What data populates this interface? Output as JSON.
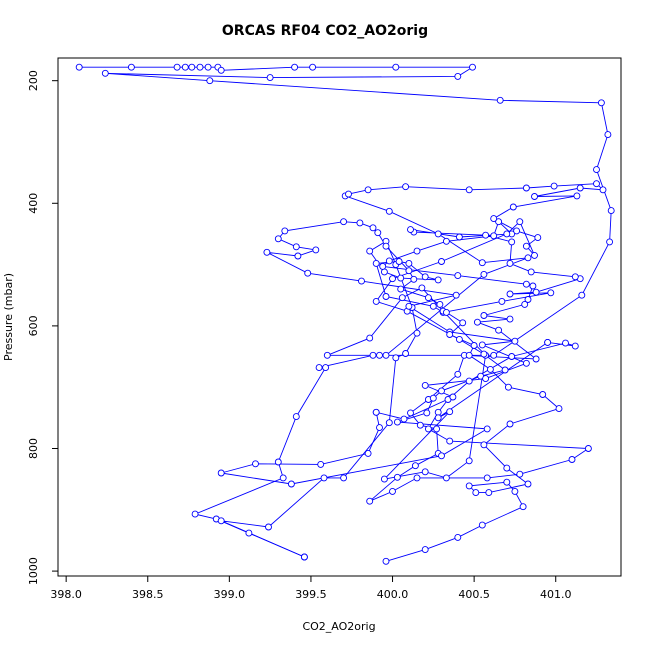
{
  "chart_data": {
    "type": "line",
    "title": "ORCAS RF04 CO2_AO2orig",
    "xlabel": "CO2_AO2orig",
    "ylabel": "Pressure (mbar)",
    "xlim": [
      397.95,
      401.4
    ],
    "ylim": [
      163,
      1008
    ],
    "y_reversed": true,
    "grid": false,
    "legend": "none",
    "marker": "open-circle",
    "color": "#0000ff",
    "x_ticks": [
      398.0,
      398.5,
      399.0,
      399.5,
      400.0,
      400.5,
      401.0
    ],
    "x_tick_labels": [
      "398.0",
      "398.5",
      "399.0",
      "399.5",
      "400.0",
      "400.5",
      "401.0"
    ],
    "y_ticks": [
      200,
      400,
      600,
      800,
      1000
    ],
    "y_tick_labels": [
      "200",
      "400",
      "600",
      "800",
      "1000"
    ],
    "series": [
      {
        "x": [
          398.08,
          398.4,
          398.68,
          398.73,
          398.77,
          398.82,
          398.87,
          398.93,
          398.95,
          399.4,
          399.51,
          400.02,
          400.49,
          400.4,
          399.25,
          398.24,
          398.88,
          400.66,
          401.28,
          401.32,
          401.25,
          401.34,
          401.33,
          401.16,
          400.62,
          399.92,
          399.88,
          399.55,
          399.59,
          399.41,
          399.3,
          399.33,
          398.79,
          398.92,
          399.12,
          399.46
        ],
        "y": [
          178,
          178,
          178,
          178,
          178,
          178,
          178,
          178,
          183,
          178,
          178,
          178,
          178,
          193,
          195,
          188,
          200,
          232,
          236,
          288,
          345,
          412,
          463,
          550,
          648,
          648,
          648,
          668,
          668,
          748,
          822,
          848,
          907,
          915,
          938,
          977
        ]
      },
      {
        "x": [
          399.46,
          398.95,
          399.24,
          399.58,
          399.7,
          399.98,
          400.02,
          400.08,
          400.15,
          400.12,
          400.02,
          399.96,
          399.86,
          399.95,
          400.05,
          400.28,
          400.2,
          400.1,
          400.04,
          399.9,
          399.96,
          400.25,
          400.31,
          400.67,
          400.97,
          400.72,
          400.88,
          401.15,
          401.12,
          400.85,
          400.72,
          400.73,
          400.57,
          400.13,
          400.11,
          400.41,
          400.73,
          400.65,
          400.62,
          400.33,
          400.15,
          399.98,
          399.94,
          400.4,
          400.82,
          400.86,
          400.83,
          400.81,
          400.56,
          400.72,
          400.52,
          400.65,
          400.88,
          400.44,
          400.4,
          400.22,
          400.11,
          400.17,
          400.27,
          400.28,
          400.14,
          400.03,
          399.86,
          400.0,
          400.15,
          400.58,
          400.78,
          401.1,
          401.2,
          400.35,
          400.22,
          400.28,
          400.34,
          400.47,
          400.73,
          401.06,
          401.12,
          400.95
        ],
        "y": [
          977,
          918,
          928,
          848,
          848,
          758,
          652,
          645,
          612,
          570,
          500,
          462,
          478,
          512,
          522,
          525,
          520,
          498,
          495,
          498,
          552,
          568,
          578,
          560,
          546,
          548,
          545,
          523,
          520,
          512,
          498,
          463,
          452,
          447,
          443,
          455,
          450,
          430,
          453,
          462,
          478,
          494,
          503,
          518,
          532,
          535,
          557,
          565,
          583,
          589,
          594,
          607,
          654,
          648,
          679,
          720,
          742,
          762,
          768,
          808,
          828,
          847,
          886,
          870,
          848,
          848,
          842,
          818,
          800,
          788,
          768,
          741,
          720,
          690,
          650,
          628,
          633,
          627
        ]
      },
      {
        "x": [
          400.95,
          400.28,
          400.35,
          399.95,
          400.2,
          400.33,
          400.47,
          400.57,
          400.31,
          400.18,
          400.06,
          399.86,
          399.6,
          399.96,
          400.56,
          400.83,
          400.55,
          400.28,
          399.98,
          399.71,
          399.73,
          399.85,
          400.08,
          400.47,
          400.82,
          400.99,
          401.25,
          401.29,
          401.15,
          400.87,
          401.13,
          400.74,
          400.62,
          400.76,
          400.89,
          400.82,
          400.87,
          400.78,
          400.7,
          400.3,
          400.0,
          399.9,
          400.09,
          400.41,
          400.56,
          400.69,
          400.54,
          400.3,
          400.25,
          400.21,
          400.03,
          400.58,
          400.3,
          399.38,
          398.95,
          399.16,
          399.56,
          399.85,
          399.92,
          399.9
        ],
        "y": [
          627,
          750,
          740,
          850,
          838,
          848,
          820,
          648,
          576,
          538,
          554,
          620,
          648,
          648,
          516,
          489,
          497,
          450,
          413,
          388,
          385,
          378,
          373,
          378,
          375,
          372,
          368,
          378,
          375,
          389,
          388,
          406,
          425,
          445,
          456,
          470,
          485,
          430,
          450,
          495,
          523,
          560,
          576,
          622,
          646,
          672,
          682,
          706,
          718,
          742,
          757,
          768,
          812,
          858,
          840,
          825,
          826,
          808,
          766,
          741
        ]
      },
      {
        "x": [
          399.9,
          400.07,
          400.37,
          400.2,
          400.57,
          400.82,
          400.55,
          400.75,
          400.35,
          400.1,
          400.39,
          399.81,
          399.48,
          399.23,
          399.42,
          399.53,
          399.41,
          399.3,
          399.34,
          399.7,
          399.8,
          399.88,
          399.91,
          399.96,
          400.1,
          400.13,
          400.05,
          400.22,
          400.29,
          400.33,
          400.43,
          400.35,
          400.5,
          400.47,
          400.6,
          400.71,
          400.92,
          401.02,
          400.72,
          400.56,
          400.7,
          400.83,
          400.59,
          400.51,
          400.47,
          400.7,
          400.75,
          400.8,
          400.55,
          400.4,
          400.2,
          399.96
        ],
        "y": [
          741,
          752,
          716,
          697,
          686,
          661,
          631,
          625,
          610,
          568,
          550,
          527,
          514,
          480,
          486,
          476,
          471,
          458,
          445,
          430,
          432,
          440,
          448,
          470,
          510,
          524,
          540,
          554,
          565,
          578,
          595,
          614,
          632,
          648,
          671,
          700,
          712,
          735,
          760,
          794,
          832,
          858,
          872,
          872,
          861,
          855,
          870,
          895,
          925,
          945,
          965,
          984
        ]
      }
    ]
  }
}
